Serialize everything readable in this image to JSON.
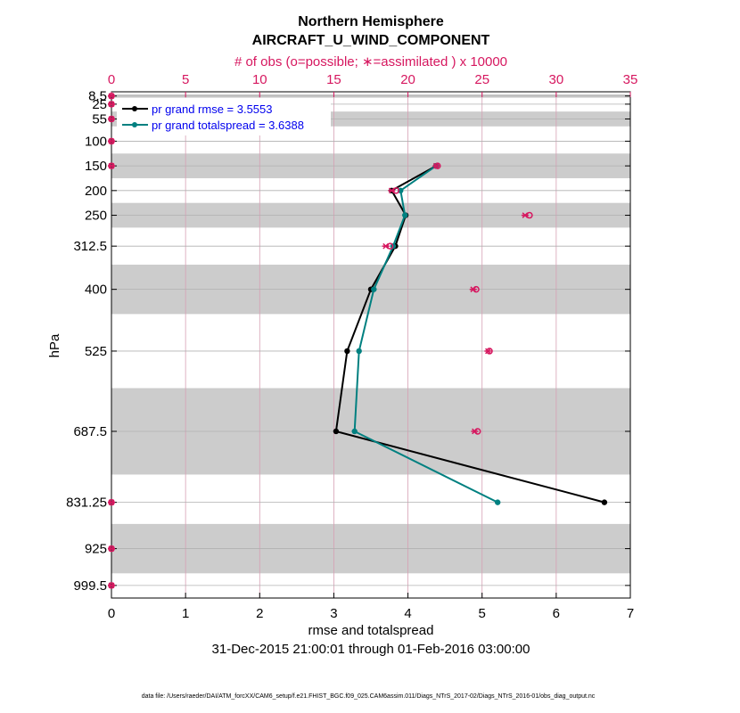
{
  "chart_data": {
    "type": "line",
    "title": "Northern Hemisphere",
    "subtitle": "AIRCRAFT_U_WIND_COMPONENT",
    "top_axis_label": "# of obs (o=possible; ∗=assimilated ) x 10000",
    "xlabel": "rmse and totalspread",
    "ylabel": "hPa",
    "date_range": "31-Dec-2015 21:00:01 through 01-Feb-2016 03:00:00",
    "footer": "data file: /Users/raeder/DAI/ATM_forcXX/CAM6_setup/f.e21.FHIST_BGC.f09_025.CAM6assim.011/Diags_NTrS_2017-02/Diags_NTrS_2016-01/obs_diag_output.nc",
    "xlim": [
      0,
      7
    ],
    "top_xlim": [
      0,
      35
    ],
    "ylim_hpa": [
      1025,
      0
    ],
    "x_ticks": [
      "0",
      "1",
      "2",
      "3",
      "4",
      "5",
      "6",
      "7"
    ],
    "top_ticks": [
      "0",
      "5",
      "10",
      "15",
      "20",
      "25",
      "30",
      "35"
    ],
    "levels": [
      8.5,
      25,
      55,
      100,
      150,
      200,
      250,
      312.5,
      400,
      525,
      687.5,
      831.25,
      925,
      999.5
    ],
    "level_labels": [
      "8.5",
      "25",
      "55",
      "100",
      "150",
      "200",
      "250",
      "312.5",
      "400",
      "525",
      "687.5",
      "831.25",
      "925",
      "999.5"
    ],
    "level_bands": [
      [
        5,
        12
      ],
      [
        40,
        70
      ],
      [
        125,
        175
      ],
      [
        225,
        275
      ],
      [
        350,
        450
      ],
      [
        600,
        775
      ],
      [
        875,
        975
      ]
    ],
    "series": [
      {
        "name": "pr grand rmse",
        "legend": "pr grand rmse = 3.5553",
        "color": "#000000",
        "points": [
          [
            4.38,
            150
          ],
          [
            3.78,
            200
          ],
          [
            3.97,
            250
          ],
          [
            3.83,
            312.5
          ],
          [
            3.5,
            400
          ],
          [
            3.18,
            525
          ],
          [
            3.03,
            687.5
          ],
          [
            6.65,
            831.25
          ]
        ]
      },
      {
        "name": "pr grand totalspread",
        "legend": "pr grand totalspread = 3.6388",
        "color": "#008080",
        "points": [
          [
            4.38,
            150
          ],
          [
            3.9,
            200
          ],
          [
            3.96,
            250
          ],
          [
            3.8,
            312.5
          ],
          [
            3.54,
            400
          ],
          [
            3.34,
            525
          ],
          [
            3.28,
            687.5
          ],
          [
            5.21,
            831.25
          ]
        ]
      }
    ],
    "obs_counts": {
      "color": "#d6175f",
      "possible": [
        [
          0,
          8.5
        ],
        [
          0,
          25
        ],
        [
          0,
          55
        ],
        [
          0,
          100
        ],
        [
          0,
          150
        ],
        [
          19.2,
          200
        ],
        [
          22.0,
          150
        ],
        [
          28.2,
          250
        ],
        [
          18.8,
          312.5
        ],
        [
          24.6,
          400
        ],
        [
          25.5,
          525
        ],
        [
          24.7,
          687.5
        ],
        [
          0,
          831.25
        ],
        [
          0,
          925
        ],
        [
          0,
          999.5
        ]
      ],
      "assimilated": [
        [
          0,
          8.5
        ],
        [
          0,
          25
        ],
        [
          0,
          55
        ],
        [
          0,
          100
        ],
        [
          0,
          150
        ],
        [
          18.9,
          200
        ],
        [
          21.9,
          150
        ],
        [
          27.9,
          250
        ],
        [
          18.5,
          312.5
        ],
        [
          24.4,
          400
        ],
        [
          25.4,
          525
        ],
        [
          24.5,
          687.5
        ],
        [
          0,
          831.25
        ],
        [
          0,
          925
        ],
        [
          0,
          999.5
        ]
      ]
    }
  }
}
